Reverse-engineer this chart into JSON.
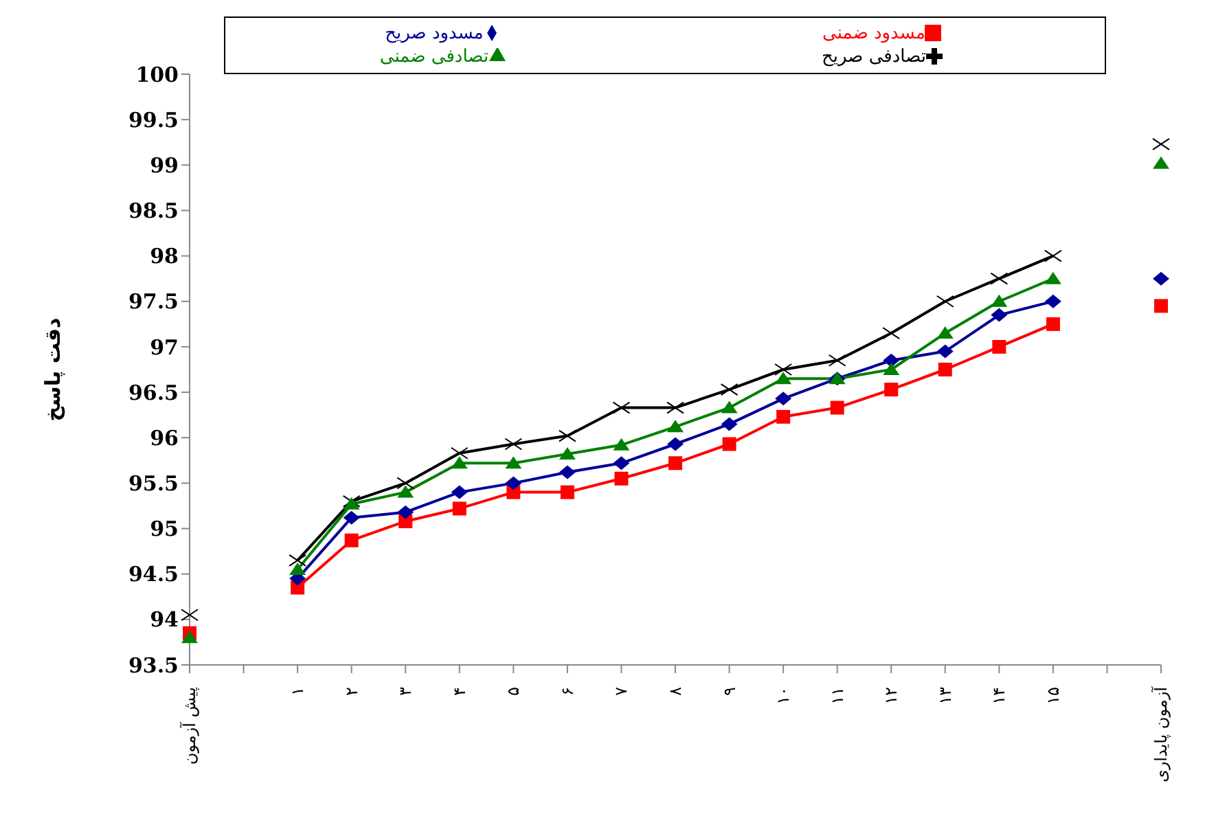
{
  "chart_data": {
    "type": "line",
    "ylabel": "دقت پاسخ",
    "categories": [
      "پیش آزمون",
      null,
      "۱",
      "۲",
      "۳",
      "۴",
      "۵",
      "۶",
      "۷",
      "۸",
      "۹",
      "۱۰",
      "۱۱",
      "۱۲",
      "۱۳",
      "۱۴",
      "۱۵",
      null,
      "آزمون پایداری"
    ],
    "series": [
      {
        "name": "مسدود ضمنی",
        "color": "#ff0000",
        "marker": "square",
        "values": [
          93.85,
          null,
          94.35,
          94.87,
          95.08,
          95.22,
          95.4,
          95.4,
          95.55,
          95.72,
          95.93,
          96.23,
          96.33,
          96.53,
          96.75,
          97.0,
          97.25,
          null,
          97.45
        ]
      },
      {
        "name": "مسدود صریح",
        "color": "#000099",
        "marker": "diamond",
        "values": [
          null,
          null,
          94.45,
          95.12,
          95.18,
          95.4,
          95.5,
          95.62,
          95.72,
          95.93,
          96.15,
          96.43,
          96.65,
          96.85,
          96.95,
          97.35,
          97.5,
          null,
          97.75
        ]
      },
      {
        "name": "تصادفی صریح",
        "color": "#000000",
        "marker": "cross",
        "values": [
          94.05,
          null,
          94.65,
          95.3,
          95.5,
          95.83,
          95.93,
          96.02,
          96.33,
          96.33,
          96.53,
          96.75,
          96.85,
          97.15,
          97.5,
          97.75,
          98.0,
          null,
          99.23
        ]
      },
      {
        "name": "تصادفی ضمنی",
        "color": "#008000",
        "marker": "triangle",
        "values": [
          93.8,
          null,
          94.55,
          95.27,
          95.4,
          95.72,
          95.72,
          95.82,
          95.92,
          96.12,
          96.33,
          96.65,
          96.65,
          96.75,
          97.15,
          97.5,
          97.75,
          null,
          99.02
        ]
      }
    ],
    "ylim": [
      93.5,
      100
    ],
    "yticks": [
      93.5,
      94,
      94.5,
      95,
      95.5,
      96,
      96.5,
      97,
      97.5,
      98,
      98.5,
      99,
      99.5,
      100
    ],
    "grid": false,
    "legend": "top"
  }
}
